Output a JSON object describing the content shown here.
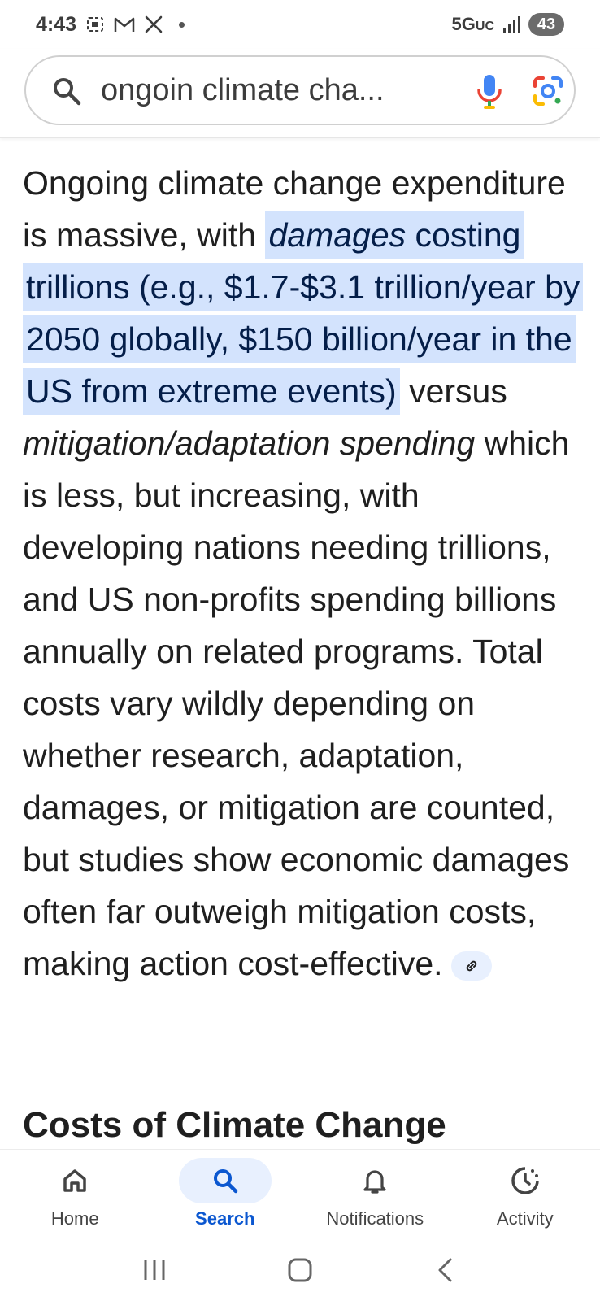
{
  "status_bar": {
    "time": "4:43",
    "network": "5G",
    "network_sub": "UC",
    "battery": "43"
  },
  "search": {
    "query": "ongoin climate cha..."
  },
  "answer": {
    "p1": "Ongoing climate change expenditure is massive, with ",
    "hl_italic": "damages",
    "hl_rest": " costing trillions (e.g., $1.7-$3.1 trillion/year by 2050 globally, $150 billion/year in the US from extreme events)",
    "p2": " versus ",
    "italic2": "mitigation/adaptation spending",
    "p3": " which is less, but increasing, with developing nations needing trillions, and US non-profits spending billions annually on related programs. Total costs vary wildly depending on whether research, adaptation, damages, or mitigation are counted, but studies show economic damages often far outweigh mitigation costs, making action cost-effective."
  },
  "next_heading": "Costs of Climate Change",
  "bottom_nav": {
    "items": [
      {
        "label": "Home",
        "icon": "home-icon"
      },
      {
        "label": "Search",
        "icon": "search-icon"
      },
      {
        "label": "Notifications",
        "icon": "bell-icon"
      },
      {
        "label": "Activity",
        "icon": "activity-icon"
      }
    ],
    "active_index": 1
  },
  "colors": {
    "accent": "#0b57d0",
    "highlight_bg": "#d3e3fd",
    "highlight_text": "#041e49"
  }
}
